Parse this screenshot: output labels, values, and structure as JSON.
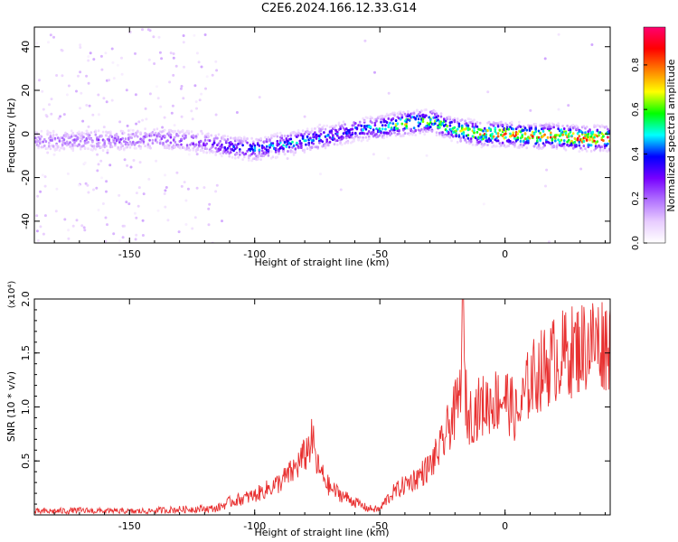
{
  "title": "C2E6.2024.166.12.33.G14",
  "chart_data": [
    {
      "type": "heatmap",
      "xlabel": "Height of straight line (km)",
      "ylabel": "Frequency (Hz)",
      "xlim": [
        -188,
        42
      ],
      "ylim": [
        -50,
        49
      ],
      "xticks": [
        -150,
        -100,
        -50,
        0
      ],
      "yticks": [
        -40,
        -20,
        0,
        20,
        40
      ],
      "colorbar": {
        "label": "Normalized spectral amplitude",
        "range": [
          0,
          0.97
        ],
        "ticks": [
          "0.0",
          "0.2",
          "0.4",
          "0.6",
          "0.8"
        ],
        "colors": [
          "#ffffff",
          "#e8ccff",
          "#b070ff",
          "#7700ff",
          "#0000ff",
          "#00ffff",
          "#00ff00",
          "#ffff00",
          "#ff8000",
          "#ff0000",
          "#ff0070"
        ]
      },
      "ridge": {
        "x": [
          -188,
          -160,
          -140,
          -130,
          -120,
          -110,
          -100,
          -90,
          -80,
          -70,
          -60,
          -50,
          -40,
          -30,
          -20,
          -10,
          0,
          10,
          20,
          30,
          42
        ],
        "y": [
          -3,
          -3,
          -2,
          -3,
          -4,
          -6,
          -7,
          -5,
          -3,
          -1,
          2,
          3,
          5,
          6,
          2,
          0,
          0,
          -1,
          -1,
          -2,
          -2
        ],
        "peak_amplitude": [
          0.2,
          0.25,
          0.25,
          0.3,
          0.3,
          0.4,
          0.45,
          0.5,
          0.5,
          0.45,
          0.45,
          0.55,
          0.75,
          0.65,
          0.7,
          0.85,
          0.9,
          0.9,
          0.95,
          0.95,
          0.9
        ]
      }
    },
    {
      "type": "line",
      "xlabel": "Height of straight line (km)",
      "ylabel": "SNR (10 * v/v)",
      "y_multiplier": "(x10⁴)",
      "xlim": [
        -188,
        42
      ],
      "ylim": [
        0,
        2.0
      ],
      "xticks": [
        -150,
        -100,
        -50,
        0
      ],
      "yticks": [
        "0.5",
        "1.0",
        "1.5",
        "2.0"
      ],
      "color": "#e83030",
      "series": [
        {
          "x": [
            -188,
            -170,
            -150,
            -130,
            -115,
            -110,
            -100,
            -90,
            -85,
            -80,
            -77,
            -75,
            -70,
            -65,
            -60,
            -55,
            -50,
            -48,
            -45,
            -40,
            -35,
            -30,
            -25,
            -22,
            -20,
            -18,
            -17,
            -16,
            -15,
            -10,
            -5,
            0,
            5,
            10,
            15,
            20,
            25,
            30,
            35,
            42
          ],
          "y": [
            0.03,
            0.04,
            0.03,
            0.05,
            0.06,
            0.12,
            0.18,
            0.3,
            0.4,
            0.55,
            0.7,
            0.45,
            0.25,
            0.18,
            0.12,
            0.06,
            0.05,
            0.12,
            0.2,
            0.28,
            0.35,
            0.45,
            0.65,
            0.85,
            0.95,
            1.1,
            1.95,
            1.2,
            0.9,
            1.0,
            1.05,
            1.1,
            0.9,
            1.25,
            1.35,
            1.45,
            1.5,
            1.55,
            1.6,
            1.6
          ]
        }
      ]
    }
  ]
}
